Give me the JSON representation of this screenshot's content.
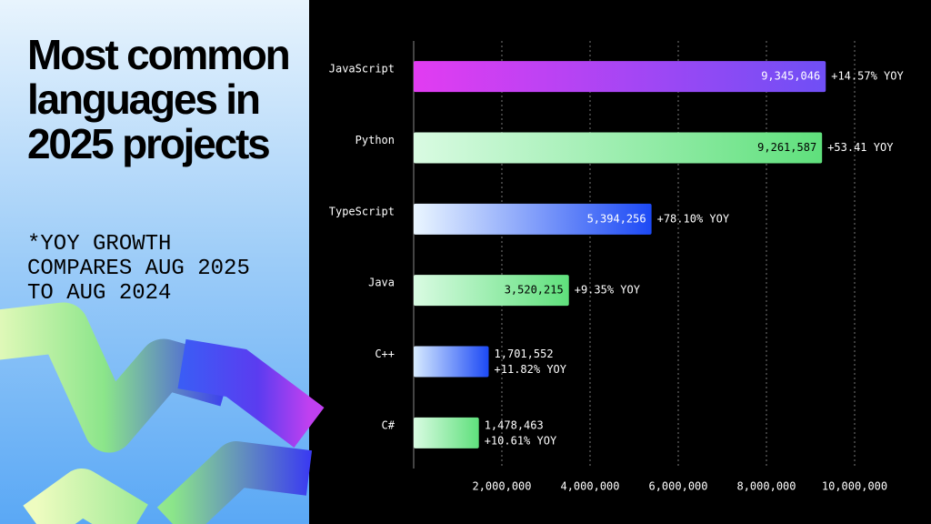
{
  "chart_data": {
    "type": "hbar",
    "title": "Most common languages in 2025 projects",
    "subtitle": "*YOY GROWTH COMPARES AUG 2025 TO AUG 2024",
    "categories": [
      "JavaScript",
      "Python",
      "TypeScript",
      "Java",
      "C++",
      "C#"
    ],
    "values": [
      9345046,
      9261587,
      5394256,
      3520215,
      1701552,
      1478463
    ],
    "value_labels": [
      "9,345,046",
      "9,261,587",
      "5,394,256",
      "3,520,215",
      "1,701,552",
      "1,478,463"
    ],
    "growth": [
      "+14.57% YOY",
      "+53.41 YOY",
      "+78.10% YOY",
      "+9.35% YOY",
      "+11.82% YOY",
      "+10.61% YOY"
    ],
    "gradients": [
      [
        "#e23cf2",
        "#6f4ff5"
      ],
      [
        "#d9fbe2",
        "#5fe07c"
      ],
      [
        "#eaf6ff",
        "#1c49f5"
      ],
      [
        "#d9fbe2",
        "#5fe07c"
      ],
      [
        "#d7ebff",
        "#1c49f5"
      ],
      [
        "#d9fbe2",
        "#5fe07c"
      ]
    ],
    "xlim": [
      0,
      10000000
    ],
    "xticks": [
      {
        "value": 2000000,
        "label": "2,000,000"
      },
      {
        "value": 4000000,
        "label": "4,000,000"
      },
      {
        "value": 6000000,
        "label": "6,000,000"
      },
      {
        "value": 8000000,
        "label": "8,000,000"
      },
      {
        "value": 10000000,
        "label": "10,000,000"
      }
    ],
    "grid": true
  }
}
